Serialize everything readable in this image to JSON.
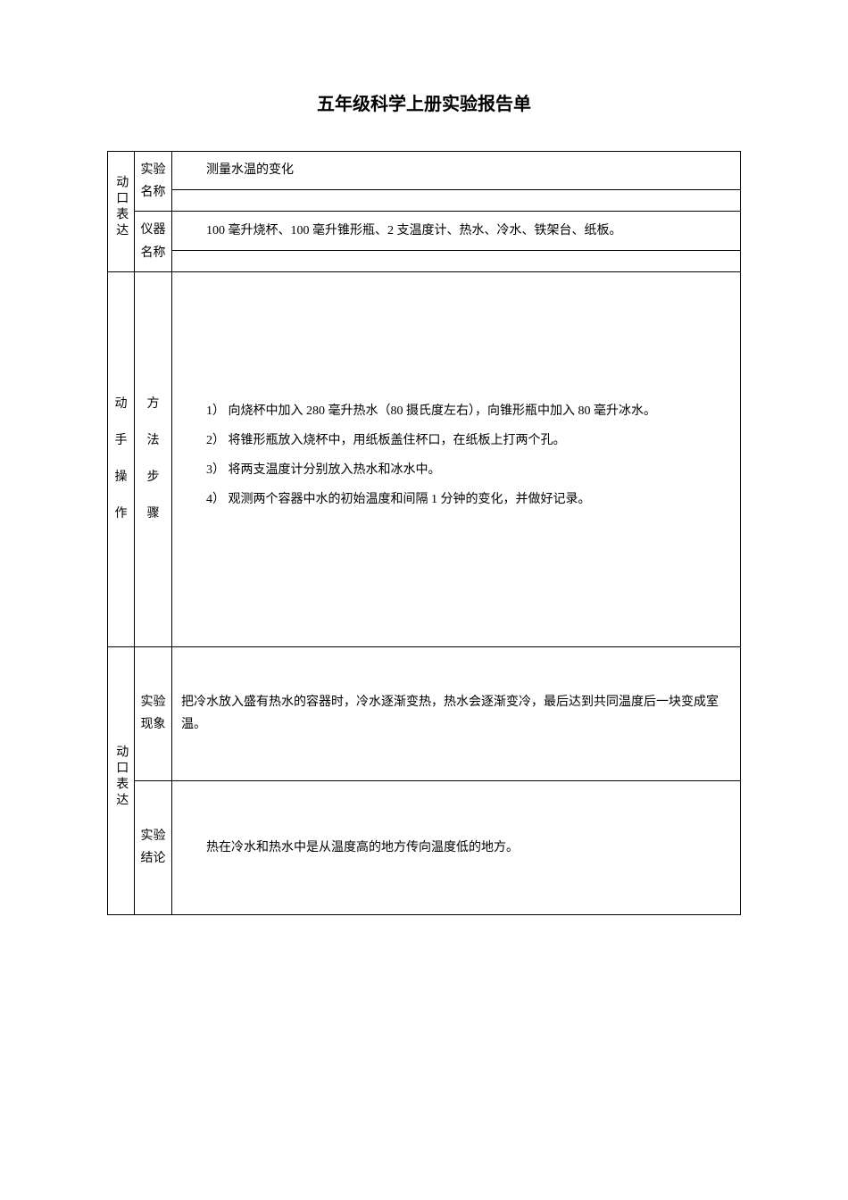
{
  "title": "五年级科学上册实验报告单",
  "section1": {
    "category": "动口表达",
    "row1_label": "实验名称",
    "row1_value": "测量水温的变化",
    "row2_label": "仪器名称",
    "row2_value": "100 毫升烧杯、100 毫升锥形瓶、2 支温度计、热水、冷水、铁架台、纸板。"
  },
  "section2": {
    "category_chars": [
      "动",
      "手",
      "操",
      "作"
    ],
    "label_chars": [
      "方",
      "法",
      "步",
      "骤"
    ],
    "steps": [
      "1）  向烧杯中加入 280 毫升热水（80 摄氏度左右），向锥形瓶中加入 80 毫升冰水。",
      "2）  将锥形瓶放入烧杯中，用纸板盖住杯口，在纸板上打两个孔。",
      "3）  将两支温度计分别放入热水和冰水中。",
      "4）  观测两个容器中水的初始温度和间隔 1 分钟的变化，并做好记录。"
    ]
  },
  "section3": {
    "category": "动口表达",
    "row1_label": "实验现象",
    "row1_value": "把冷水放入盛有热水的容器时，冷水逐渐变热，热水会逐渐变冷，最后达到共同温度后一块变成室温。",
    "row2_label": "实验结论",
    "row2_value": "热在冷水和热水中是从温度高的地方传向温度低的地方。"
  }
}
